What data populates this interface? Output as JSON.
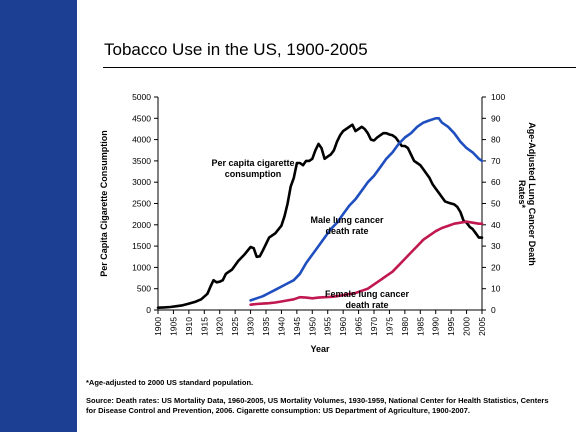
{
  "slide": {
    "title": "Tobacco Use in the US, 1900-2005",
    "footnote": "*Age-adjusted to 2000 US standard population.",
    "source": "Source: Death rates: US Mortality Data, 1960-2005, US Mortality Volumes, 1930-1959, National Center for Health Statistics, Centers for Disease Control and Prevention, 2006. Cigarette consumption: US Department of Agriculture, 1900-2007."
  },
  "colors": {
    "band": "#1c3f94",
    "cigarette": "#000000",
    "male": "#1f4fbf",
    "female": "#c0184f"
  },
  "chart_data": {
    "type": "line",
    "title": "",
    "xlabel": "Year",
    "ylabel_left": "Per Capita Cigarette Consumption",
    "ylabel_right": "Age-Adjusted Lung Cancer Death Rates*",
    "xlim": [
      1900,
      2005
    ],
    "ylim_left": [
      0,
      5000
    ],
    "ylim_right": [
      0,
      100
    ],
    "x_ticks": [
      1900,
      1905,
      1910,
      1915,
      1920,
      1925,
      1930,
      1935,
      1940,
      1945,
      1950,
      1955,
      1960,
      1965,
      1970,
      1975,
      1980,
      1985,
      1990,
      1995,
      2000,
      2005
    ],
    "y_ticks_left": [
      0,
      500,
      1000,
      1500,
      2000,
      2500,
      3000,
      3500,
      4000,
      4500,
      5000
    ],
    "y_ticks_right": [
      0,
      10,
      20,
      30,
      40,
      50,
      60,
      70,
      80,
      90,
      100
    ],
    "grid": false,
    "series": [
      {
        "name": "Per capita cigarette consumption",
        "axis": "left",
        "color": "#000000",
        "points": [
          [
            1900,
            54
          ],
          [
            1902,
            60
          ],
          [
            1904,
            70
          ],
          [
            1906,
            90
          ],
          [
            1908,
            110
          ],
          [
            1910,
            151
          ],
          [
            1912,
            190
          ],
          [
            1914,
            250
          ],
          [
            1916,
            380
          ],
          [
            1917,
            550
          ],
          [
            1918,
            700
          ],
          [
            1919,
            650
          ],
          [
            1920,
            665
          ],
          [
            1921,
            700
          ],
          [
            1922,
            850
          ],
          [
            1924,
            950
          ],
          [
            1926,
            1150
          ],
          [
            1928,
            1300
          ],
          [
            1930,
            1480
          ],
          [
            1931,
            1450
          ],
          [
            1932,
            1250
          ],
          [
            1933,
            1260
          ],
          [
            1934,
            1400
          ],
          [
            1936,
            1700
          ],
          [
            1938,
            1800
          ],
          [
            1940,
            1980
          ],
          [
            1941,
            2200
          ],
          [
            1942,
            2500
          ],
          [
            1943,
            2900
          ],
          [
            1944,
            3100
          ],
          [
            1945,
            3450
          ],
          [
            1946,
            3450
          ],
          [
            1947,
            3400
          ],
          [
            1948,
            3500
          ],
          [
            1949,
            3500
          ],
          [
            1950,
            3550
          ],
          [
            1951,
            3750
          ],
          [
            1952,
            3900
          ],
          [
            1953,
            3800
          ],
          [
            1954,
            3550
          ],
          [
            1955,
            3600
          ],
          [
            1956,
            3650
          ],
          [
            1957,
            3750
          ],
          [
            1958,
            3950
          ],
          [
            1959,
            4100
          ],
          [
            1960,
            4200
          ],
          [
            1961,
            4250
          ],
          [
            1962,
            4300
          ],
          [
            1963,
            4350
          ],
          [
            1964,
            4200
          ],
          [
            1965,
            4250
          ],
          [
            1966,
            4300
          ],
          [
            1967,
            4250
          ],
          [
            1968,
            4150
          ],
          [
            1969,
            4000
          ],
          [
            1970,
            3980
          ],
          [
            1971,
            4050
          ],
          [
            1972,
            4100
          ],
          [
            1973,
            4150
          ],
          [
            1974,
            4150
          ],
          [
            1975,
            4120
          ],
          [
            1976,
            4100
          ],
          [
            1977,
            4050
          ],
          [
            1978,
            3950
          ],
          [
            1979,
            3850
          ],
          [
            1980,
            3850
          ],
          [
            1981,
            3800
          ],
          [
            1982,
            3650
          ],
          [
            1983,
            3500
          ],
          [
            1984,
            3450
          ],
          [
            1985,
            3400
          ],
          [
            1986,
            3300
          ],
          [
            1987,
            3200
          ],
          [
            1988,
            3100
          ],
          [
            1989,
            2950
          ],
          [
            1990,
            2850
          ],
          [
            1991,
            2750
          ],
          [
            1992,
            2650
          ],
          [
            1993,
            2550
          ],
          [
            1994,
            2520
          ],
          [
            1995,
            2500
          ],
          [
            1996,
            2480
          ],
          [
            1997,
            2420
          ],
          [
            1998,
            2300
          ],
          [
            1999,
            2100
          ],
          [
            2000,
            2050
          ],
          [
            2001,
            1950
          ],
          [
            2002,
            1900
          ],
          [
            2003,
            1800
          ],
          [
            2004,
            1700
          ],
          [
            2005,
            1700
          ]
        ]
      },
      {
        "name": "Male lung cancer death rate",
        "axis": "right",
        "color": "#1f4fbf",
        "points": [
          [
            1930,
            4.5
          ],
          [
            1932,
            5.5
          ],
          [
            1934,
            6.5
          ],
          [
            1936,
            8
          ],
          [
            1938,
            9.5
          ],
          [
            1940,
            11
          ],
          [
            1942,
            12.5
          ],
          [
            1944,
            14
          ],
          [
            1946,
            17
          ],
          [
            1948,
            22
          ],
          [
            1950,
            26
          ],
          [
            1952,
            30
          ],
          [
            1954,
            34
          ],
          [
            1956,
            38
          ],
          [
            1958,
            41
          ],
          [
            1960,
            45
          ],
          [
            1962,
            49
          ],
          [
            1964,
            52
          ],
          [
            1966,
            56
          ],
          [
            1968,
            60
          ],
          [
            1970,
            63
          ],
          [
            1972,
            67
          ],
          [
            1974,
            71
          ],
          [
            1976,
            74
          ],
          [
            1978,
            78
          ],
          [
            1980,
            81
          ],
          [
            1982,
            83
          ],
          [
            1984,
            86
          ],
          [
            1986,
            88
          ],
          [
            1988,
            89
          ],
          [
            1990,
            90
          ],
          [
            1991,
            90
          ],
          [
            1992,
            88
          ],
          [
            1994,
            86
          ],
          [
            1996,
            83
          ],
          [
            1998,
            79
          ],
          [
            2000,
            76
          ],
          [
            2002,
            74
          ],
          [
            2004,
            71
          ],
          [
            2005,
            70
          ]
        ]
      },
      {
        "name": "Female lung cancer death rate",
        "axis": "right",
        "color": "#c0184f",
        "points": [
          [
            1930,
            2.5
          ],
          [
            1932,
            2.8
          ],
          [
            1934,
            3
          ],
          [
            1936,
            3.2
          ],
          [
            1938,
            3.5
          ],
          [
            1940,
            4
          ],
          [
            1942,
            4.5
          ],
          [
            1944,
            5
          ],
          [
            1946,
            6
          ],
          [
            1948,
            5.8
          ],
          [
            1950,
            5.5
          ],
          [
            1952,
            5.8
          ],
          [
            1954,
            6
          ],
          [
            1956,
            6.2
          ],
          [
            1958,
            6.5
          ],
          [
            1960,
            7
          ],
          [
            1962,
            7.5
          ],
          [
            1964,
            8
          ],
          [
            1966,
            9
          ],
          [
            1968,
            10
          ],
          [
            1970,
            12
          ],
          [
            1972,
            14
          ],
          [
            1974,
            16
          ],
          [
            1976,
            18
          ],
          [
            1978,
            21
          ],
          [
            1980,
            24
          ],
          [
            1982,
            27
          ],
          [
            1984,
            30
          ],
          [
            1986,
            33
          ],
          [
            1988,
            35
          ],
          [
            1990,
            37
          ],
          [
            1992,
            38.5
          ],
          [
            1994,
            39.5
          ],
          [
            1996,
            40.5
          ],
          [
            1998,
            41
          ],
          [
            2000,
            41.5
          ],
          [
            2002,
            41
          ],
          [
            2004,
            40.5
          ],
          [
            2005,
            40.5
          ]
        ]
      }
    ],
    "annotations": [
      {
        "lines": [
          "Per capita cigarette",
          "consumption"
        ],
        "series": 0
      },
      {
        "lines": [
          "Male lung cancer",
          "death rate"
        ],
        "series": 1
      },
      {
        "lines": [
          "Female lung cancer",
          "death rate"
        ],
        "series": 2
      }
    ]
  }
}
